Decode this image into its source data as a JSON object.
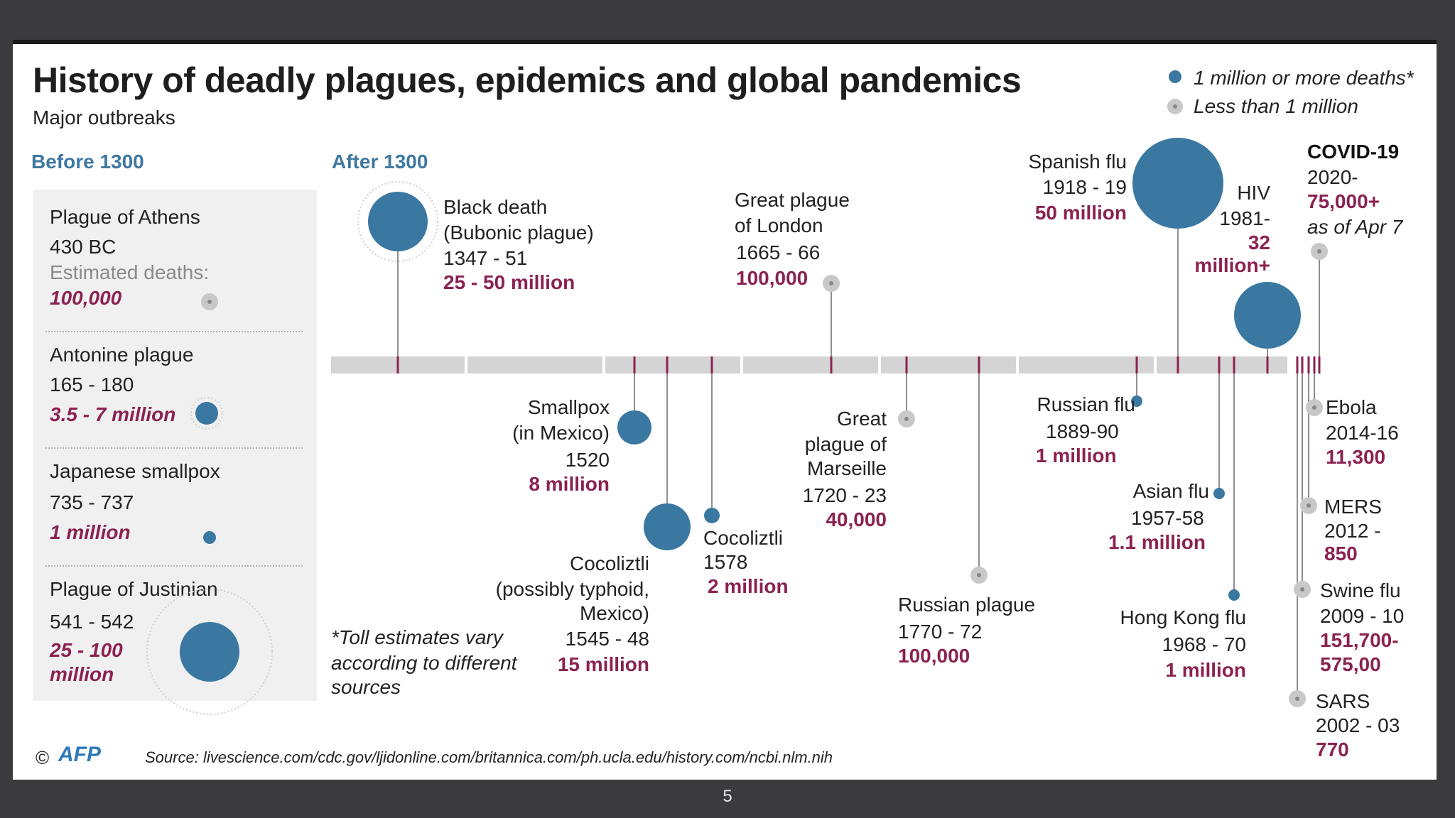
{
  "title": "History of deadly  plagues, epidemics and global pandemics",
  "subtitle": "Major outbreaks",
  "legend": {
    "major": "1 million or more deaths*",
    "minor": "Less than 1 million",
    "major_color": "#3a78a2",
    "minor_color": "#c8c8c8"
  },
  "sections": {
    "before": "Before 1300",
    "after": "After 1300"
  },
  "before_1300": [
    {
      "name": "Plague of Athens",
      "years": "430 BC",
      "label": "Estimated deaths:",
      "deaths": "100,000"
    },
    {
      "name": "Antonine plague",
      "years": "165 - 180",
      "deaths": "3.5 - 7 million"
    },
    {
      "name": "Japanese smallpox",
      "years": "735 - 737",
      "deaths": "1 million"
    },
    {
      "name": "Plague of Justinian",
      "years": "541 - 542",
      "deaths_l1": "25 - 100",
      "deaths_l2": "million"
    }
  ],
  "events": {
    "black_death": {
      "l1": "Black death",
      "l2": "(Bubonic plague)",
      "years": "1347 - 51",
      "deaths": "25 - 50 million"
    },
    "great_plague_london": {
      "l1": "Great plague",
      "l2": "of London",
      "years": "1665 - 66",
      "deaths": "100,000"
    },
    "spanish_flu": {
      "name": "Spanish flu",
      "years": "1918 - 19",
      "deaths": "50 million"
    },
    "hiv": {
      "name": "HIV",
      "years": "1981-",
      "deaths_l1": "32",
      "deaths_l2": "million+"
    },
    "covid": {
      "name": "COVID-19",
      "years": "2020-",
      "deaths": "75,000+",
      "note": "as of Apr 7"
    },
    "smallpox_mexico": {
      "l1": "Smallpox",
      "l2": "(in Mexico)",
      "years": "1520",
      "deaths": "8 million"
    },
    "cocoliztli_1545": {
      "l1": "Cocoliztli",
      "l2": "(possibly typhoid,",
      "l3": "Mexico)",
      "years": "1545 - 48",
      "deaths": "15 million"
    },
    "cocoliztli_1578": {
      "name": "Cocoliztli",
      "years": "1578",
      "deaths": "2 million"
    },
    "great_plague_marseille": {
      "l1": "Great",
      "l2": "plague of",
      "l3": "Marseille",
      "years": "1720 - 23",
      "deaths": "40,000"
    },
    "russian_plague": {
      "name": "Russian plague",
      "years": "1770 - 72",
      "deaths": "100,000"
    },
    "russian_flu": {
      "name": "Russian flu",
      "years": "1889-90",
      "deaths": "1 million"
    },
    "asian_flu": {
      "name": "Asian flu",
      "years": "1957-58",
      "deaths": "1.1 million"
    },
    "hong_kong_flu": {
      "name": "Hong Kong flu",
      "years": "1968 - 70",
      "deaths": "1 million"
    },
    "ebola": {
      "name": "Ebola",
      "years": "2014-16",
      "deaths": "11,300"
    },
    "mers": {
      "name": "MERS",
      "years": "2012 -",
      "deaths": "850"
    },
    "swine_flu": {
      "name": "Swine flu",
      "years": "2009 - 10",
      "deaths_l1": "151,700-",
      "deaths_l2": "575,00"
    },
    "sars": {
      "name": "SARS",
      "years": "2002 - 03",
      "deaths": "770"
    }
  },
  "footnote": {
    "l1": "*Toll estimates vary",
    "l2": "according to different",
    "l3": "sources"
  },
  "credit": {
    "copyright": "©",
    "agency": "AFP"
  },
  "source": "Source: livescience.com/cdc.gov/ljidonline.com/britannica.com/ph.ucla.edu/history.com/ncbi.nlm.nih",
  "page_number": "5"
}
